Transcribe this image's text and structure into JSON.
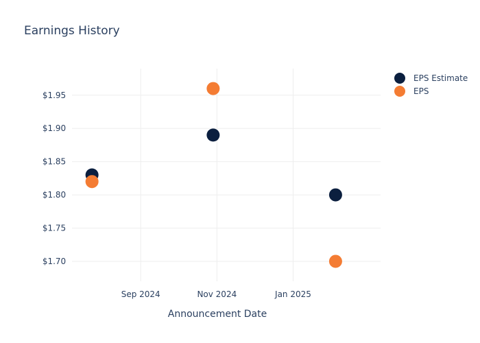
{
  "chart_data": {
    "type": "scatter",
    "title": "Earnings History",
    "xlabel": "Announcement Date",
    "ylabel": "",
    "x_ticks": [
      "Sep 2024",
      "Nov 2024",
      "Jan 2025"
    ],
    "x_tick_dates": [
      "2024-09-01",
      "2024-11-01",
      "2025-01-01"
    ],
    "xlim": [
      "2024-07-08",
      "2025-03-12"
    ],
    "y_ticks": [
      "$1.70",
      "$1.75",
      "$1.80",
      "$1.85",
      "$1.90",
      "$1.95"
    ],
    "y_tick_values": [
      1.7,
      1.75,
      1.8,
      1.85,
      1.9,
      1.95
    ],
    "ylim": [
      1.67,
      1.99
    ],
    "grid": true,
    "legend_position": "top-right",
    "series": [
      {
        "name": "EPS Estimate",
        "color": "#0b1f3f",
        "points": [
          {
            "x": "2024-07-24",
            "y": 1.83
          },
          {
            "x": "2024-10-29",
            "y": 1.89
          },
          {
            "x": "2025-02-04",
            "y": 1.8
          }
        ]
      },
      {
        "name": "EPS",
        "color": "#f47c33",
        "points": [
          {
            "x": "2024-07-24",
            "y": 1.82
          },
          {
            "x": "2024-10-29",
            "y": 1.96
          },
          {
            "x": "2025-02-04",
            "y": 1.7
          }
        ]
      }
    ]
  }
}
